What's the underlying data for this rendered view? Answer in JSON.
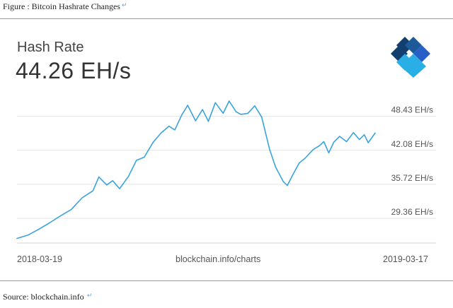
{
  "figure_caption": "Figure : Bitcoin Hashrate Changes",
  "card": {
    "title": "Hash Rate",
    "current_value": "44.26 EH/s",
    "source_watermark": "blockchain.info/charts",
    "brand_color": "#0c3d6b",
    "line_color": "#3aa3dd"
  },
  "source_text": "Source: blockchain.info",
  "chart_data": {
    "type": "line",
    "xlim": [
      "2018-03-19",
      "2019-03-17"
    ],
    "x_tick_labels": [
      "2018-03-19",
      "2019-03-17"
    ],
    "y_tick_labels": [
      "48.43 EH/s",
      "42.08 EH/s",
      "35.72 EH/s",
      "29.36 EH/s"
    ],
    "y_ticks": [
      48.43,
      42.08,
      35.72,
      29.36
    ],
    "ylim": [
      25.0,
      51.7
    ],
    "grid": true,
    "legend": "none",
    "series": [
      {
        "values": [
          [
            "2018-03-19",
            25.6
          ],
          [
            "2018-03-30",
            26.2
          ],
          [
            "2018-04-10",
            27.3
          ],
          [
            "2018-04-21",
            28.5
          ],
          [
            "2018-05-02",
            29.8
          ],
          [
            "2018-05-13",
            31.0
          ],
          [
            "2018-05-24",
            33.2
          ],
          [
            "2018-06-04",
            34.5
          ],
          [
            "2018-06-10",
            37.1
          ],
          [
            "2018-06-18",
            35.6
          ],
          [
            "2018-06-24",
            36.4
          ],
          [
            "2018-07-01",
            34.9
          ],
          [
            "2018-07-10",
            37.2
          ],
          [
            "2018-07-18",
            40.2
          ],
          [
            "2018-07-26",
            40.8
          ],
          [
            "2018-08-04",
            43.6
          ],
          [
            "2018-08-12",
            45.3
          ],
          [
            "2018-08-20",
            46.6
          ],
          [
            "2018-08-26",
            45.9
          ],
          [
            "2018-09-02",
            48.7
          ],
          [
            "2018-09-08",
            50.5
          ],
          [
            "2018-09-16",
            47.6
          ],
          [
            "2018-09-23",
            49.7
          ],
          [
            "2018-09-29",
            47.5
          ],
          [
            "2018-10-06",
            51.0
          ],
          [
            "2018-10-14",
            49.0
          ],
          [
            "2018-10-20",
            51.3
          ],
          [
            "2018-10-27",
            49.3
          ],
          [
            "2018-11-01",
            48.8
          ],
          [
            "2018-11-08",
            49.0
          ],
          [
            "2018-11-15",
            50.4
          ],
          [
            "2018-11-22",
            48.3
          ],
          [
            "2018-11-30",
            42.3
          ],
          [
            "2018-12-06",
            39.0
          ],
          [
            "2018-12-14",
            36.2
          ],
          [
            "2018-12-18",
            35.5
          ],
          [
            "2018-12-23",
            37.3
          ],
          [
            "2018-12-30",
            39.7
          ],
          [
            "2019-01-05",
            40.6
          ],
          [
            "2019-01-13",
            42.2
          ],
          [
            "2019-01-20",
            43.0
          ],
          [
            "2019-01-24",
            43.7
          ],
          [
            "2019-01-29",
            41.6
          ],
          [
            "2019-02-03",
            43.6
          ],
          [
            "2019-02-09",
            44.7
          ],
          [
            "2019-02-16",
            43.7
          ],
          [
            "2019-02-23",
            45.4
          ],
          [
            "2019-03-01",
            44.1
          ],
          [
            "2019-03-06",
            45.0
          ],
          [
            "2019-03-10",
            43.5
          ],
          [
            "2019-03-17",
            45.3
          ]
        ]
      }
    ]
  }
}
